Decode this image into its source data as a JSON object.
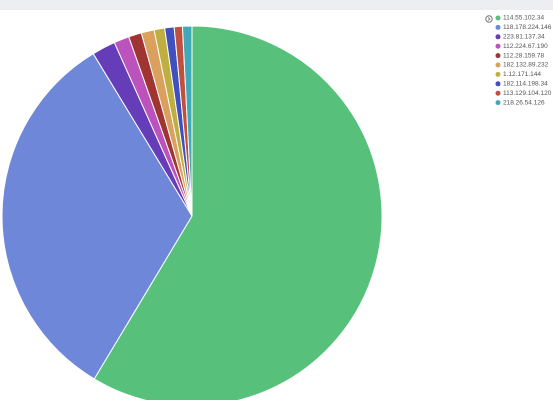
{
  "chart_data": {
    "type": "pie",
    "series": [
      {
        "name": "114.55.102.34",
        "color": "#57c17b",
        "values": [
          58.6
        ]
      },
      {
        "name": "118.178.224.146",
        "color": "#6f87d8",
        "values": [
          32.7
        ]
      },
      {
        "name": "223.81.137.34",
        "color": "#663db8",
        "values": [
          2.0
        ]
      },
      {
        "name": "112.224.67.190",
        "color": "#bc52bc",
        "values": [
          1.3
        ]
      },
      {
        "name": "112.28.159.78",
        "color": "#9e3533",
        "values": [
          1.1
        ]
      },
      {
        "name": "182.132.89.232",
        "color": "#daa05d",
        "values": [
          1.1
        ]
      },
      {
        "name": "1.12.171.144",
        "color": "#bfaf40",
        "values": [
          0.9
        ]
      },
      {
        "name": "182.114.198.34",
        "color": "#4050bf",
        "values": [
          0.8
        ]
      },
      {
        "name": "113.129.104.120",
        "color": "#bf5040",
        "values": [
          0.7
        ]
      },
      {
        "name": "218.26.54.126",
        "color": "#3fa9b8",
        "values": [
          0.8
        ]
      }
    ],
    "legend": "top-right"
  }
}
